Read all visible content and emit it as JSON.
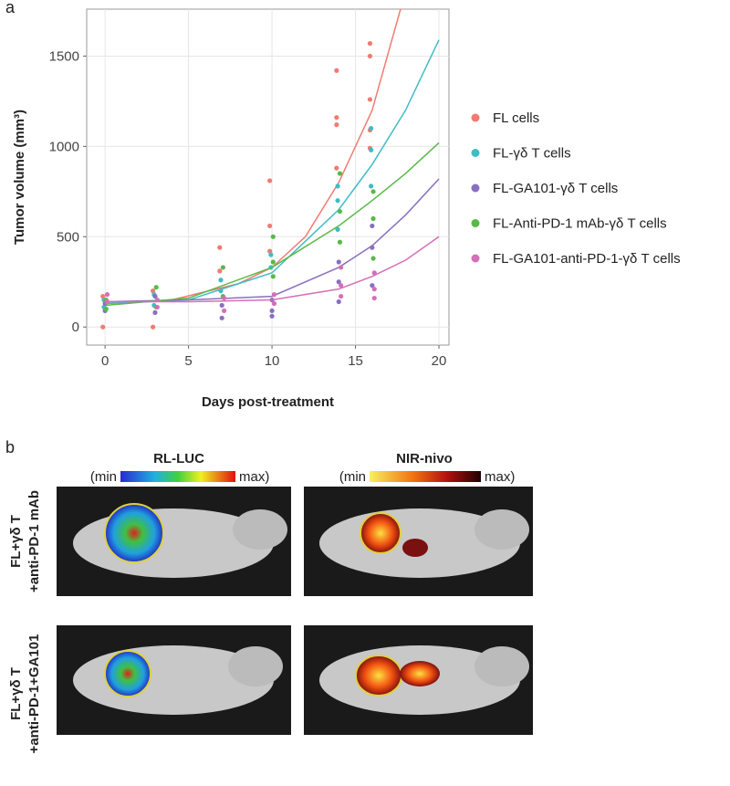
{
  "panel_labels": [
    "a",
    "b"
  ],
  "chart_data": {
    "type": "scatter",
    "y_label": "Tumor volume (mm³)",
    "x_label": "Days post-treatment",
    "xlim": [
      -1.1,
      20.6
    ],
    "ylim": [
      -100,
      1760
    ],
    "xticks": [
      0,
      5,
      10,
      15,
      20
    ],
    "yticks": [
      0,
      500,
      1000,
      1500
    ],
    "grid": true,
    "series": [
      {
        "name": "FL cells",
        "color": "#f07b72",
        "x": [
          0,
          0,
          3,
          3,
          7,
          7,
          10,
          10,
          10,
          14,
          14,
          14,
          14,
          16,
          16,
          16,
          16,
          16
        ],
        "values": [
          0,
          170,
          0,
          200,
          440,
          310,
          810,
          560,
          420,
          1420,
          1160,
          1120,
          880,
          1570,
          1500,
          1260,
          1090,
          990
        ],
        "fit_x": [
          0,
          4,
          8,
          10,
          12,
          14,
          16,
          17.7
        ],
        "fit": [
          130,
          150,
          240,
          330,
          500,
          800,
          1200,
          1760
        ]
      },
      {
        "name": "FL-γδ T cells",
        "color": "#3fbcc6",
        "x": [
          0,
          0,
          3,
          3,
          7,
          7,
          10,
          10,
          14,
          14,
          14,
          16,
          16,
          16
        ],
        "values": [
          150,
          110,
          180,
          120,
          260,
          200,
          400,
          330,
          780,
          700,
          540,
          1100,
          980,
          780
        ],
        "fit_x": [
          0,
          5,
          10,
          14,
          16,
          18,
          20
        ],
        "fit": [
          130,
          150,
          300,
          650,
          900,
          1200,
          1590
        ]
      },
      {
        "name": "FL-GA101-γδ T cells",
        "color": "#8a6fc0",
        "x": [
          0,
          0,
          3,
          3,
          7,
          7,
          10,
          10,
          10,
          14,
          14,
          14,
          16,
          16,
          16
        ],
        "values": [
          130,
          90,
          170,
          80,
          120,
          50,
          150,
          90,
          60,
          360,
          250,
          140,
          560,
          440,
          230
        ],
        "fit_x": [
          0,
          5,
          10,
          14,
          16,
          18,
          20
        ],
        "fit": [
          140,
          150,
          170,
          330,
          450,
          620,
          820
        ]
      },
      {
        "name": "FL-Anti-PD-1 mAb-γδ T cells",
        "color": "#58b947",
        "x": [
          0,
          0,
          3,
          3,
          7,
          7,
          10,
          10,
          10,
          14,
          14,
          14,
          16,
          16,
          16
        ],
        "values": [
          150,
          100,
          220,
          110,
          330,
          170,
          500,
          360,
          280,
          850,
          640,
          470,
          750,
          600,
          380
        ],
        "fit_x": [
          0,
          5,
          10,
          14,
          16,
          18,
          20
        ],
        "fit": [
          120,
          160,
          330,
          560,
          700,
          850,
          1020
        ]
      },
      {
        "name": "FL-GA101-anti-PD-1-γδ T cells",
        "color": "#d46fb8",
        "x": [
          0,
          0,
          3,
          3,
          7,
          7,
          10,
          10,
          14,
          14,
          14,
          16,
          16,
          16
        ],
        "values": [
          180,
          140,
          150,
          110,
          160,
          90,
          180,
          130,
          330,
          230,
          170,
          300,
          210,
          160
        ],
        "fit_x": [
          0,
          5,
          10,
          14,
          16,
          18,
          20
        ],
        "fit": [
          140,
          140,
          150,
          210,
          280,
          370,
          500
        ]
      }
    ]
  },
  "panel_b": {
    "columns": [
      "RL-LUC",
      "NIR-nivo"
    ],
    "scale_min": "(min",
    "scale_max": "max)",
    "rows": [
      [
        "FL+γδ T",
        "+anti-PD-1 mAb"
      ],
      [
        "FL+γδ T",
        "+anti-PD-1+GA101"
      ]
    ]
  }
}
